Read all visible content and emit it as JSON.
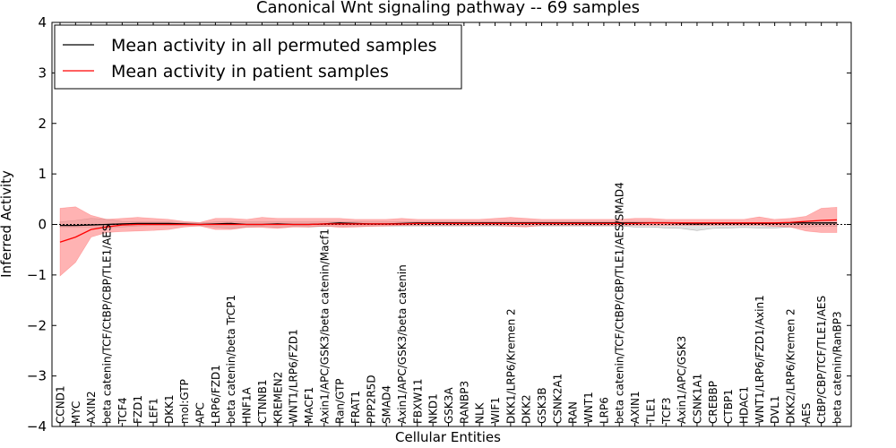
{
  "chart_data": {
    "type": "line",
    "title": "Canonical Wnt signaling pathway -- 69 samples",
    "xlabel": "Cellular Entities",
    "ylabel": "Inferred Activity",
    "ylim": [
      -4,
      4
    ],
    "yticks": [
      -4,
      -3,
      -2,
      -1,
      0,
      1,
      2,
      3,
      4
    ],
    "ytick_labels": [
      "−4",
      "−3",
      "−2",
      "−1",
      "0",
      "1",
      "2",
      "3",
      "4"
    ],
    "legend_position": "top-left",
    "categories": [
      "CCND1",
      "MYC",
      "AXIN2",
      "beta catenin/TCF/CtBP/CBP/TLE1/AES",
      "TCF4",
      "FZD1",
      "LEF1",
      "DKK1",
      "mol:GTP",
      "APC",
      "LRP6/FZD1",
      "beta catenin/beta TrCP1",
      "HNF1A",
      "CTNNB1",
      "KREMEN2",
      "WNT1/LRP6/FZD1",
      "MACF1",
      "Axin1/APC/GSK3/beta catenin/Macf1",
      "Ran/GTP",
      "FRAT1",
      "PPP2R5D",
      "SMAD4",
      "Axin1/APC/GSK3/beta catenin",
      "FBXW11",
      "NKD1",
      "GSK3A",
      "RANBP3",
      "NLK",
      "WIF1",
      "DKK1/LRP6/Kremen 2",
      "DKK2",
      "GSK3B",
      "CSNK2A1",
      "RAN",
      "WNT1",
      "LRP6",
      "beta catenin/TCF/CtBP/CBP/TLE1/AES/SMAD4",
      "AXIN1",
      "TLE1",
      "TCF3",
      "Axin1/APC/GSK3",
      "CSNK1A1",
      "CREBBP",
      "CTBP1",
      "HDAC1",
      "WNT1/LRP6/FZD1/Axin1",
      "DVL1",
      "DKK2/LRP6/Kremen 2",
      "AES",
      "CtBP/CBP/TCF/TLE1/AES",
      "beta catenin/RanBP3"
    ],
    "series": [
      {
        "name": "Mean activity in all permuted samples",
        "color": "#000000",
        "values": [
          -0.02,
          -0.02,
          -0.01,
          0.0,
          0.01,
          0.02,
          0.02,
          0.02,
          0.01,
          0.0,
          0.01,
          0.02,
          0.0,
          0.0,
          0.01,
          0.0,
          0.0,
          0.01,
          0.03,
          0.02,
          0.01,
          0.01,
          0.02,
          0.03,
          0.03,
          0.03,
          0.03,
          0.03,
          0.03,
          0.03,
          0.03,
          0.03,
          0.03,
          0.03,
          0.03,
          0.03,
          0.03,
          0.03,
          0.03,
          0.03,
          0.02,
          0.01,
          0.02,
          0.02,
          0.02,
          0.02,
          0.02,
          0.03,
          0.03,
          0.03,
          0.03
        ],
        "band_lower": [
          -0.05,
          -0.06,
          -0.06,
          -0.07,
          -0.05,
          -0.03,
          -0.02,
          -0.02,
          -0.02,
          -0.02,
          -0.05,
          -0.08,
          -0.05,
          -0.04,
          -0.06,
          -0.04,
          -0.05,
          -0.04,
          -0.03,
          -0.03,
          -0.03,
          -0.03,
          -0.03,
          -0.03,
          -0.03,
          -0.03,
          -0.03,
          -0.03,
          -0.03,
          -0.03,
          -0.03,
          -0.03,
          -0.03,
          -0.03,
          -0.03,
          -0.03,
          -0.03,
          -0.05,
          -0.05,
          -0.07,
          -0.08,
          -0.12,
          -0.08,
          -0.07,
          -0.06,
          -0.07,
          -0.07,
          -0.05,
          -0.05,
          -0.04,
          -0.04
        ],
        "band_upper": [
          0.05,
          0.08,
          0.12,
          0.1,
          0.06,
          0.05,
          0.05,
          0.05,
          0.04,
          0.03,
          0.05,
          0.06,
          0.05,
          0.05,
          0.05,
          0.05,
          0.05,
          0.05,
          0.05,
          0.06,
          0.05,
          0.05,
          0.05,
          0.05,
          0.05,
          0.05,
          0.05,
          0.05,
          0.05,
          0.05,
          0.05,
          0.05,
          0.05,
          0.05,
          0.05,
          0.05,
          0.05,
          0.05,
          0.05,
          0.05,
          0.04,
          0.04,
          0.04,
          0.04,
          0.04,
          0.04,
          0.04,
          0.04,
          0.04,
          0.04,
          0.04
        ]
      },
      {
        "name": "Mean activity in patient samples",
        "color": "#ff0000",
        "values": [
          -0.35,
          -0.25,
          -0.1,
          -0.05,
          -0.01,
          0.0,
          0.0,
          0.0,
          0.0,
          0.0,
          0.0,
          0.0,
          0.0,
          0.0,
          0.0,
          0.0,
          0.0,
          0.01,
          0.01,
          0.01,
          0.01,
          0.01,
          0.01,
          0.02,
          0.02,
          0.02,
          0.02,
          0.02,
          0.02,
          0.02,
          0.02,
          0.02,
          0.02,
          0.02,
          0.02,
          0.02,
          0.02,
          0.02,
          0.03,
          0.03,
          0.03,
          0.03,
          0.03,
          0.03,
          0.03,
          0.03,
          0.03,
          0.04,
          0.06,
          0.08,
          0.09
        ],
        "band_lower": [
          -1.02,
          -0.75,
          -0.25,
          -0.16,
          -0.14,
          -0.13,
          -0.12,
          -0.1,
          -0.05,
          -0.03,
          -0.1,
          -0.1,
          -0.06,
          -0.06,
          -0.08,
          -0.05,
          -0.05,
          -0.03,
          -0.06,
          -0.05,
          -0.04,
          -0.03,
          -0.02,
          -0.02,
          -0.02,
          -0.02,
          -0.02,
          -0.02,
          -0.02,
          -0.04,
          -0.05,
          -0.02,
          -0.02,
          -0.02,
          -0.02,
          -0.02,
          -0.02,
          -0.02,
          -0.02,
          -0.02,
          -0.02,
          -0.02,
          -0.02,
          -0.02,
          -0.02,
          -0.02,
          -0.04,
          -0.05,
          -0.13,
          -0.16,
          -0.16
        ],
        "band_upper": [
          0.32,
          0.35,
          0.18,
          0.1,
          0.12,
          0.14,
          0.12,
          0.1,
          0.06,
          0.04,
          0.12,
          0.12,
          0.1,
          0.14,
          0.12,
          0.12,
          0.12,
          0.12,
          0.12,
          0.1,
          0.1,
          0.1,
          0.12,
          0.1,
          0.1,
          0.1,
          0.1,
          0.1,
          0.12,
          0.14,
          0.12,
          0.1,
          0.1,
          0.1,
          0.1,
          0.1,
          0.1,
          0.12,
          0.12,
          0.1,
          0.1,
          0.1,
          0.1,
          0.1,
          0.1,
          0.15,
          0.1,
          0.12,
          0.16,
          0.32,
          0.34
        ]
      }
    ],
    "colors": {
      "permuted_band": "#c8c8c8",
      "patient_band": "#ff8080",
      "baseline": "#000000"
    }
  }
}
